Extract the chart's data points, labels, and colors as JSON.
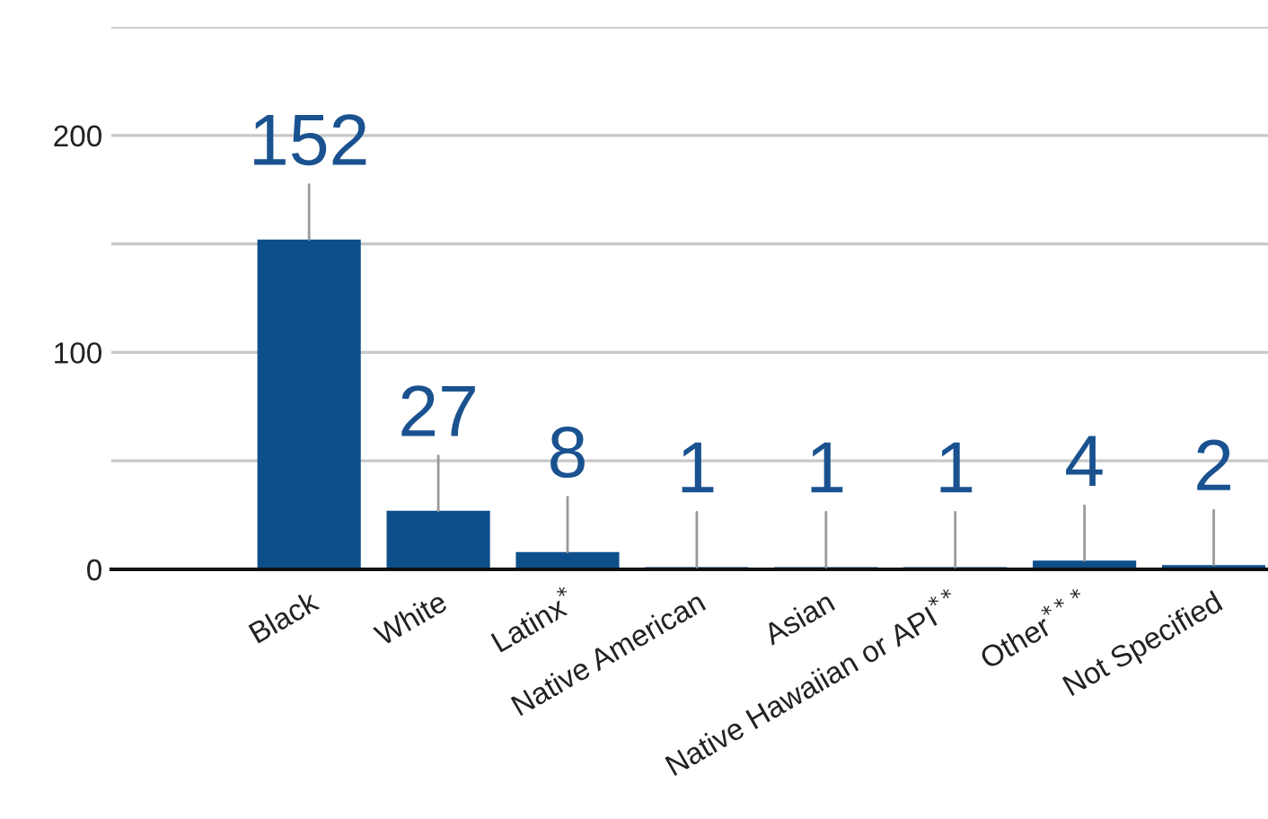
{
  "chart_data": {
    "type": "bar",
    "categories": [
      "Black",
      "White",
      "Latinx$^{*}$",
      "Native American",
      "Asian",
      "Native Hawaiian or API$^{**}$",
      "Other$^{***}$",
      "Not Specified"
    ],
    "values": [
      152,
      27,
      8,
      1,
      1,
      1,
      4,
      2
    ],
    "color": "#0d4f8b",
    "ylim": [
      0,
      250
    ],
    "yticks": [
      0,
      {
        "value": 50,
        "label": null
      },
      100,
      {
        "value": 150,
        "label": null
      },
      200,
      {
        "value": 250,
        "label": null
      }
    ],
    "grid": "y",
    "data_labels": true,
    "legend": false
  }
}
